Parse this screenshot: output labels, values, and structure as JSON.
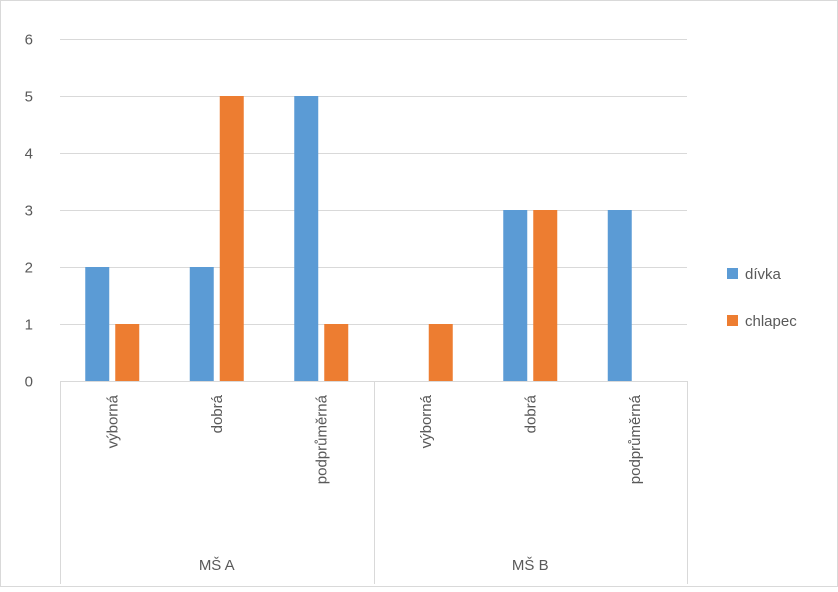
{
  "chart_data": {
    "type": "bar",
    "title": "",
    "xlabel": "",
    "ylabel": "",
    "ylim": [
      0,
      6
    ],
    "yticks": [
      0,
      1,
      2,
      3,
      4,
      5,
      6
    ],
    "grid": true,
    "legend_position": "right",
    "groups": [
      {
        "label": "MŠ A",
        "categories": [
          "výborná",
          "dobrá",
          "podprůměrná"
        ]
      },
      {
        "label": "MŠ B",
        "categories": [
          "výborná",
          "dobrá",
          "podprůměrná"
        ]
      }
    ],
    "categories": [
      "výborná",
      "dobrá",
      "podprůměrná",
      "výborná",
      "dobrá",
      "podprůměrná"
    ],
    "series": [
      {
        "name": "dívka",
        "color": "#5B9BD5",
        "values": [
          2,
          2,
          5,
          0,
          3,
          3
        ]
      },
      {
        "name": "chlapec",
        "color": "#ED7D31",
        "values": [
          1,
          5,
          1,
          1,
          3,
          0
        ]
      }
    ]
  }
}
